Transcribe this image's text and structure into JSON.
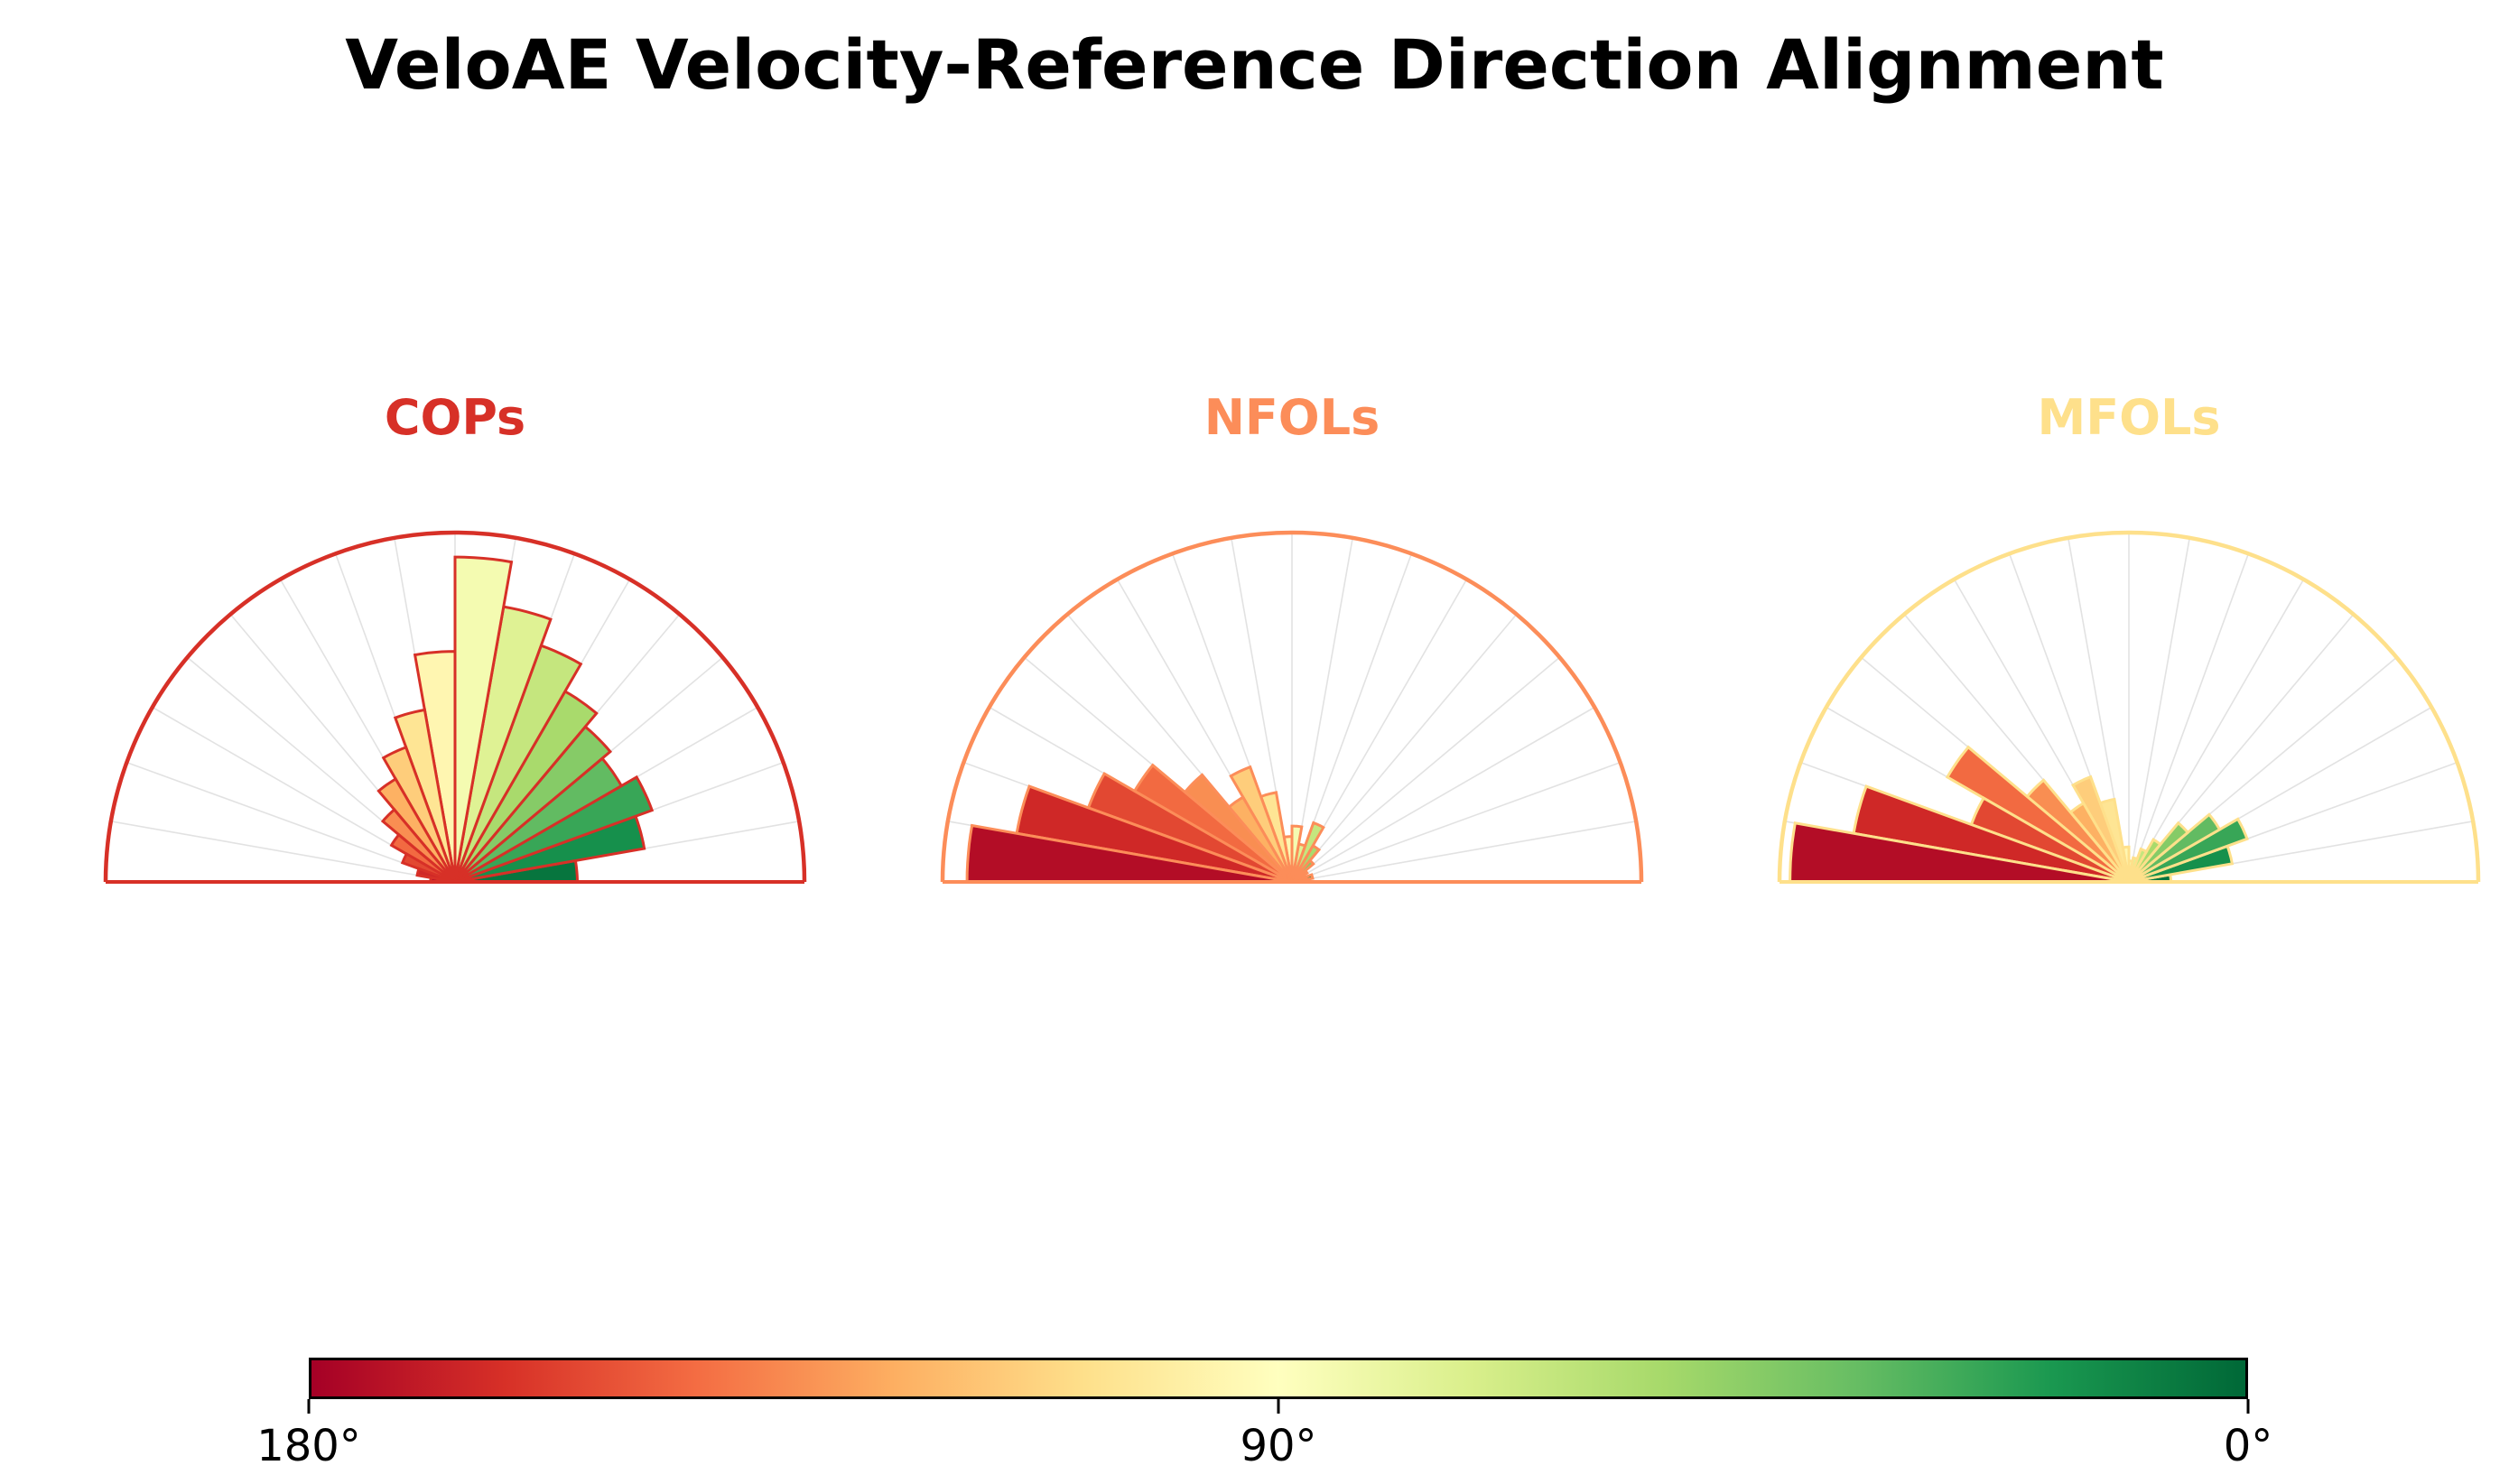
{
  "title": "VeloAE Velocity-Reference Direction Alignment",
  "colors": {
    "background": "#ffffff",
    "title_color": "#000000",
    "grid_color": "#e2e2e2",
    "colorbar_border": "#000000"
  },
  "colormap": {
    "name": "RdYlGn",
    "stops": [
      "#a50026",
      "#d73027",
      "#f46d43",
      "#fdae61",
      "#fee08b",
      "#ffffbf",
      "#d9ef8b",
      "#a6d96a",
      "#66bd63",
      "#1a9850",
      "#006837"
    ],
    "mapping": "angle 180° maps to left/red end, 90° to middle pale yellow, 0° to right/green end"
  },
  "colorbar": {
    "orientation": "horizontal",
    "ticks": [
      {
        "label": "180°",
        "pos": 0
      },
      {
        "label": "90°",
        "pos": 0.5
      },
      {
        "label": "0°",
        "pos": 1
      }
    ]
  },
  "chart_data": [
    {
      "type": "polar-histogram",
      "title": "COPs",
      "accent_color": "#d73027",
      "angle_range_deg": [
        0,
        180
      ],
      "bin_width_deg": 10,
      "bin_centers_deg": [
        5,
        15,
        25,
        35,
        45,
        55,
        65,
        75,
        85,
        95,
        105,
        115,
        125,
        135,
        145,
        155,
        165,
        175
      ],
      "values": [
        0.35,
        0.55,
        0.6,
        0.55,
        0.58,
        0.63,
        0.72,
        0.8,
        0.93,
        0.66,
        0.5,
        0.41,
        0.34,
        0.27,
        0.21,
        0.16,
        0.11,
        0.07
      ],
      "values_unit": "bar length as fraction of semicircle radius (radial axis unlabeled)",
      "color_rule": "bar color = RdYlGn(1 - angle/180)",
      "grid": "light gray radial spokes every 10 degrees, semicircle outline in accent color",
      "legend": "none"
    },
    {
      "type": "polar-histogram",
      "title": "NFOLs",
      "accent_color": "#fc8d59",
      "angle_range_deg": [
        0,
        180
      ],
      "bin_width_deg": 10,
      "bin_centers_deg": [
        5,
        15,
        25,
        35,
        45,
        55,
        65,
        75,
        85,
        95,
        105,
        115,
        125,
        135,
        145,
        155,
        165,
        175
      ],
      "values": [
        0.04,
        0.06,
        0.04,
        0.05,
        0.08,
        0.12,
        0.18,
        0.11,
        0.16,
        0.13,
        0.26,
        0.35,
        0.28,
        0.4,
        0.52,
        0.62,
        0.8,
        0.93
      ],
      "values_unit": "bar length as fraction of semicircle radius (radial axis unlabeled)",
      "color_rule": "bar color = RdYlGn(1 - angle/180)",
      "grid": "light gray radial spokes every 10 degrees, semicircle outline in accent color",
      "legend": "none"
    },
    {
      "type": "polar-histogram",
      "title": "MFOLs",
      "accent_color": "#fee08b",
      "angle_range_deg": [
        0,
        180
      ],
      "bin_width_deg": 10,
      "bin_centers_deg": [
        5,
        15,
        25,
        35,
        45,
        55,
        65,
        75,
        85,
        95,
        105,
        115,
        125,
        135,
        145,
        155,
        165,
        175
      ],
      "values": [
        0.12,
        0.3,
        0.36,
        0.3,
        0.22,
        0.14,
        0.1,
        0.07,
        0.06,
        0.1,
        0.24,
        0.32,
        0.26,
        0.38,
        0.6,
        0.48,
        0.8,
        0.97
      ],
      "values_unit": "bar length as fraction of semicircle radius (radial axis unlabeled)",
      "color_rule": "bar color = RdYlGn(1 - angle/180)",
      "grid": "light gray radial spokes every 10 degrees, semicircle outline in accent color",
      "legend": "none"
    }
  ]
}
